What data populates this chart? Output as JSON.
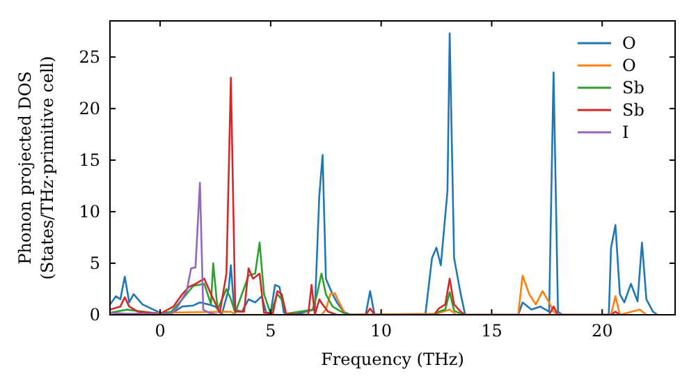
{
  "chart_data": {
    "type": "line",
    "xlabel": "Frequency (THz)",
    "ylabel": "Phonon projected DOS\n(States/THz·primitive cell)",
    "xlim": [
      -2.27,
      23.3
    ],
    "ylim": [
      0,
      28.5
    ],
    "xticks": [
      0,
      5,
      10,
      15,
      20
    ],
    "yticks": [
      0,
      5,
      10,
      15,
      20,
      25
    ],
    "legend": "top right",
    "grid": false,
    "series": [
      {
        "name": "O",
        "color": "#1f77b4",
        "x": [
          -2.27,
          -2.0,
          -1.8,
          -1.6,
          -1.4,
          -1.2,
          -0.8,
          -0.3,
          0,
          0.5,
          1.0,
          1.5,
          1.8,
          2.2,
          2.5,
          2.8,
          3.1,
          3.2,
          3.35,
          3.7,
          4.0,
          4.3,
          4.6,
          4.8,
          5.0,
          5.2,
          5.4,
          5.6,
          6.0,
          7.0,
          7.2,
          7.35,
          7.5,
          7.8,
          8.0,
          8.3,
          8.6,
          9.3,
          9.5,
          9.7,
          12.0,
          12.3,
          12.5,
          12.7,
          13.0,
          13.1,
          13.3,
          13.6,
          13.8,
          16.2,
          16.4,
          16.8,
          17.2,
          17.6,
          17.8,
          18.0,
          18.2,
          20.3,
          20.4,
          20.6,
          20.8,
          21.0,
          21.3,
          21.6,
          21.8,
          22.0,
          22.3,
          22.5
        ],
        "values": [
          1.0,
          1.8,
          1.5,
          3.7,
          1.2,
          2.0,
          1.0,
          0.5,
          0.2,
          0.1,
          0.8,
          0.9,
          1.2,
          1.0,
          0.8,
          0.1,
          2.5,
          4.8,
          0.5,
          0.3,
          1.5,
          1.2,
          1.8,
          0.2,
          0.2,
          2.9,
          2.7,
          0.2,
          0,
          0.5,
          11.5,
          15.5,
          3.5,
          2.0,
          1.2,
          0.3,
          0,
          0,
          2.3,
          0,
          0,
          5.5,
          6.5,
          4.8,
          12,
          27.3,
          5.5,
          2,
          0,
          0,
          1.2,
          0.5,
          0.8,
          0.3,
          23.5,
          0.3,
          0,
          0,
          6.5,
          8.7,
          2,
          1.2,
          3,
          1.3,
          7,
          1.5,
          0.3,
          0
        ]
      },
      {
        "name": "O",
        "color": "#ff7f0e",
        "x": [
          -2.27,
          0,
          3.2,
          3.4,
          7.3,
          7.5,
          7.7,
          7.9,
          8.1,
          8.4,
          12.5,
          13.1,
          13.4,
          16.2,
          16.4,
          16.7,
          17.0,
          17.3,
          17.6,
          17.8,
          18.0,
          20.4,
          20.6,
          20.8,
          21.7,
          22.0
        ],
        "values": [
          0,
          0.2,
          0.3,
          0,
          0,
          0.5,
          2.0,
          2.1,
          1.2,
          0,
          0.1,
          0.5,
          0,
          0,
          3.8,
          2.0,
          1.0,
          2.3,
          1.2,
          0.3,
          0,
          0,
          1.8,
          0,
          0.5,
          0
        ]
      },
      {
        "name": "Sb",
        "color": "#2ca02c",
        "x": [
          -2.27,
          -1.5,
          0,
          0.5,
          1.0,
          1.5,
          2.0,
          2.3,
          2.4,
          2.6,
          3.0,
          3.2,
          3.4,
          4.0,
          4.3,
          4.5,
          4.7,
          5.0,
          5.3,
          5.5,
          5.7,
          6.9,
          7.1,
          7.3,
          7.5,
          7.8,
          8.2,
          8.5,
          12.4,
          12.6,
          12.9,
          13.1,
          13.3,
          13.7
        ],
        "values": [
          0.2,
          0.5,
          0.1,
          0.3,
          1.5,
          2.8,
          3,
          1.0,
          5.0,
          0.5,
          2.5,
          1.5,
          0.2,
          3.8,
          4.0,
          7,
          2,
          0.1,
          2.0,
          1.5,
          0.1,
          0.5,
          2,
          4.0,
          2.0,
          0.8,
          0.3,
          0,
          0,
          0.3,
          0.5,
          2.2,
          0.4,
          0
        ]
      },
      {
        "name": "Sb",
        "color": "#d62728",
        "x": [
          -2.27,
          -1.8,
          -1.6,
          -1.4,
          -1.0,
          0,
          0.6,
          1.0,
          1.3,
          1.6,
          2.0,
          2.3,
          2.7,
          3.0,
          3.2,
          3.4,
          3.8,
          4.0,
          4.2,
          4.5,
          4.7,
          5.1,
          5.3,
          5.5,
          5.7,
          6.7,
          6.85,
          7.0,
          7.2,
          7.35,
          7.6,
          8.0,
          9.3,
          9.5,
          9.7,
          12.4,
          12.6,
          12.9,
          13.1,
          13.3,
          13.6,
          13.8,
          17.6,
          17.8,
          18.0,
          20.4,
          20.6,
          20.8
        ],
        "values": [
          0.5,
          0.8,
          1.7,
          0.8,
          0.3,
          0.1,
          0.8,
          2.0,
          2.7,
          3.0,
          3.5,
          2.0,
          0.2,
          4.0,
          23,
          0.3,
          0.3,
          4.5,
          3.5,
          4.0,
          0.2,
          0.1,
          2.3,
          2.0,
          0.1,
          0,
          2.9,
          0,
          1.5,
          1.0,
          0.3,
          0,
          0,
          0.6,
          0,
          0,
          0.6,
          1.0,
          3.5,
          1.0,
          0.3,
          0,
          0,
          0.8,
          0,
          0,
          0.3,
          0
        ]
      },
      {
        "name": "I",
        "color": "#9467bd",
        "x": [
          -2.27,
          -1.5,
          0.5,
          0.8,
          1.2,
          1.4,
          1.6,
          1.8,
          1.95,
          2.2,
          2.6
        ],
        "values": [
          0.2,
          0.1,
          0.1,
          0.8,
          2.3,
          4.5,
          4.6,
          12.8,
          0.5,
          0.2,
          0
        ]
      }
    ]
  }
}
